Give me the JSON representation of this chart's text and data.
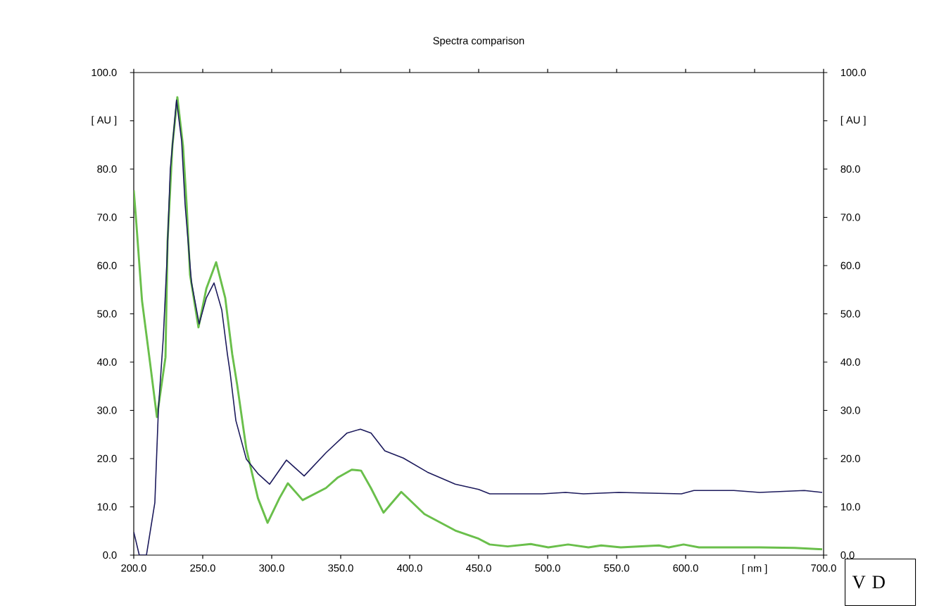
{
  "chart_data": {
    "type": "line",
    "title": "Spectra comparison",
    "annotations": [
      "V D"
    ],
    "marker": "none",
    "line_style": "solid",
    "xlim": [
      200,
      700
    ],
    "ylim": [
      0,
      100
    ],
    "y2lim": [
      0,
      100
    ],
    "xticks": [
      {
        "value": 200,
        "label": "200.0"
      },
      {
        "value": 250,
        "label": "250.0"
      },
      {
        "value": 300,
        "label": "300.0"
      },
      {
        "value": 350,
        "label": "350.0"
      },
      {
        "value": 400,
        "label": "400.0"
      },
      {
        "value": 450,
        "label": "450.0"
      },
      {
        "value": 500,
        "label": "500.0"
      },
      {
        "value": 550,
        "label": "550.0"
      },
      {
        "value": 600,
        "label": "600.0"
      },
      {
        "value": 650,
        "label": "[ nm ]"
      },
      {
        "value": 700,
        "label": "700.0"
      }
    ],
    "yticks": [
      {
        "value": 0,
        "label": "0.0"
      },
      {
        "value": 10,
        "label": "10.0"
      },
      {
        "value": 20,
        "label": "20.0"
      },
      {
        "value": 30,
        "label": "30.0"
      },
      {
        "value": 40,
        "label": "40.0"
      },
      {
        "value": 50,
        "label": "50.0"
      },
      {
        "value": 60,
        "label": "60.0"
      },
      {
        "value": 70,
        "label": "70.0"
      },
      {
        "value": 80,
        "label": "80.0"
      },
      {
        "value": 90,
        "label": "[ AU ]"
      },
      {
        "value": 100,
        "label": "100.0"
      }
    ],
    "y2ticks": [
      {
        "value": 0,
        "label": "0.0"
      },
      {
        "value": 10,
        "label": "10.0"
      },
      {
        "value": 20,
        "label": "20.0"
      },
      {
        "value": 30,
        "label": "30.0"
      },
      {
        "value": 40,
        "label": "40.0"
      },
      {
        "value": 50,
        "label": "50.0"
      },
      {
        "value": 60,
        "label": "60.0"
      },
      {
        "value": 70,
        "label": "70.0"
      },
      {
        "value": 80,
        "label": "80.0"
      },
      {
        "value": 90,
        "label": "[ AU ]"
      },
      {
        "value": 100,
        "label": "100.0"
      }
    ],
    "series": [
      {
        "color": "#6abf4b",
        "x": [
          200,
          201.5,
          206,
          211.7,
          216.8,
          223,
          224.5,
          228,
          231.6,
          235.7,
          238.3,
          240.8,
          246.9,
          252.6,
          259.7,
          266.3,
          271.4,
          275,
          281.6,
          290,
          297,
          305.6,
          311.7,
          322.4,
          339.3,
          348,
          358,
          364.8,
          371.9,
          381,
          393.9,
          410.7,
          433,
          450,
          458,
          471,
          487.8,
          500.5,
          514.8,
          529.6,
          538.8,
          553,
          580.6,
          587.8,
          598.5,
          609.7,
          653.6,
          679,
          699
        ],
        "values": [
          75.6,
          70.2,
          52.7,
          40.1,
          28.6,
          41,
          65,
          84.8,
          94.9,
          84.8,
          72.7,
          58.1,
          47.2,
          55.2,
          60.7,
          53.3,
          41.6,
          35.2,
          22,
          11.8,
          6.7,
          11.8,
          14.9,
          11.4,
          13.9,
          16.1,
          17.7,
          17.5,
          13.9,
          8.8,
          13.1,
          8.5,
          5.1,
          3.4,
          2.2,
          1.8,
          2.3,
          1.6,
          2.2,
          1.6,
          2,
          1.6,
          2,
          1.6,
          2.2,
          1.6,
          1.6,
          1.5,
          1.2
        ]
      },
      {
        "color": "#1c1a5c",
        "x": [
          200,
          204,
          209.2,
          215.3,
          217.9,
          221.4,
          224,
          226.5,
          231,
          234.7,
          237.2,
          241.8,
          247.4,
          252.6,
          258.2,
          263.8,
          267.9,
          269.9,
          274,
          281.6,
          290.3,
          298.5,
          310.7,
          323.5,
          339.3,
          354.6,
          364.3,
          372,
          382,
          395.4,
          412.8,
          433,
          450,
          458,
          496,
          513,
          526,
          551.5,
          597,
          606,
          635,
          653.6,
          686,
          699
        ],
        "values": [
          4.8,
          0,
          0,
          10.9,
          30.4,
          45,
          60.6,
          80,
          94.3,
          85.8,
          72.7,
          56.6,
          47.9,
          53.3,
          56.4,
          50.8,
          41.6,
          37.7,
          27.9,
          19.9,
          16.8,
          14.7,
          19.7,
          16.4,
          21.2,
          25.3,
          26.1,
          25.3,
          21.6,
          20.1,
          17.2,
          14.7,
          13.6,
          12.7,
          12.7,
          13,
          12.7,
          13,
          12.7,
          13.4,
          13.4,
          13,
          13.4,
          13
        ]
      }
    ]
  }
}
